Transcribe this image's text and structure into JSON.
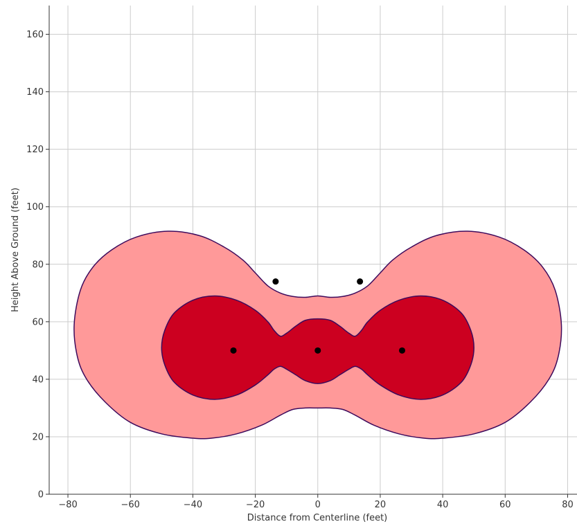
{
  "chart_data": {
    "type": "area",
    "xlabel": "Distance from Centerline (feet)",
    "ylabel": "Height Above Ground (feet)",
    "xlim": [
      -86,
      83
    ],
    "ylim": [
      0,
      170
    ],
    "x_ticks": [
      -80,
      -60,
      -40,
      -20,
      0,
      20,
      40,
      60,
      80
    ],
    "y_ticks": [
      0,
      20,
      40,
      60,
      80,
      100,
      120,
      140,
      160
    ],
    "grid": true,
    "colors": {
      "outer_region": "#ff9999",
      "inner_region": "#cc0020",
      "boundary": "#3d0a5c",
      "points": "#000000"
    },
    "regions": [
      {
        "level": "outer",
        "outline": [
          [
            -78,
            59
          ],
          [
            -76,
            71
          ],
          [
            -72,
            79
          ],
          [
            -66,
            85
          ],
          [
            -58,
            89.5
          ],
          [
            -48,
            91.5
          ],
          [
            -38,
            90
          ],
          [
            -30,
            86
          ],
          [
            -24,
            81.5
          ],
          [
            -20,
            77
          ],
          [
            -16,
            72.5
          ],
          [
            -12,
            70
          ],
          [
            -8,
            68.8
          ],
          [
            -4,
            68.5
          ],
          [
            0,
            69
          ],
          [
            4,
            68.5
          ],
          [
            8,
            68.8
          ],
          [
            12,
            70
          ],
          [
            16,
            72.5
          ],
          [
            20,
            77
          ],
          [
            24,
            81.5
          ],
          [
            30,
            86
          ],
          [
            38,
            90
          ],
          [
            48,
            91.5
          ],
          [
            58,
            89.5
          ],
          [
            66,
            85
          ],
          [
            72,
            79
          ],
          [
            76,
            71
          ],
          [
            78,
            59
          ],
          [
            77,
            48
          ],
          [
            74,
            40
          ],
          [
            68,
            32
          ],
          [
            60,
            25
          ],
          [
            50,
            21
          ],
          [
            40,
            19.5
          ],
          [
            34,
            19.5
          ],
          [
            26,
            21
          ],
          [
            18,
            24
          ],
          [
            12,
            27.5
          ],
          [
            8,
            29.5
          ],
          [
            4,
            30
          ],
          [
            0,
            30
          ],
          [
            -4,
            30
          ],
          [
            -8,
            29.5
          ],
          [
            -12,
            27.5
          ],
          [
            -18,
            24
          ],
          [
            -26,
            21
          ],
          [
            -34,
            19.5
          ],
          [
            -40,
            19.5
          ],
          [
            -50,
            21
          ],
          [
            -60,
            25
          ],
          [
            -68,
            32
          ],
          [
            -74,
            40
          ],
          [
            -77,
            48
          ]
        ]
      },
      {
        "level": "inner",
        "outline": [
          [
            -50,
            51
          ],
          [
            -49,
            57
          ],
          [
            -46,
            63
          ],
          [
            -40,
            67.5
          ],
          [
            -33,
            69
          ],
          [
            -26,
            67.5
          ],
          [
            -20,
            64
          ],
          [
            -16,
            60
          ],
          [
            -14,
            57
          ],
          [
            -12,
            55
          ],
          [
            -10,
            56
          ],
          [
            -7,
            58.5
          ],
          [
            -4,
            60.5
          ],
          [
            0,
            61
          ],
          [
            4,
            60.5
          ],
          [
            7,
            58.5
          ],
          [
            10,
            56
          ],
          [
            12,
            55
          ],
          [
            14,
            57
          ],
          [
            16,
            60
          ],
          [
            20,
            64
          ],
          [
            26,
            67.5
          ],
          [
            33,
            69
          ],
          [
            40,
            67.5
          ],
          [
            46,
            63
          ],
          [
            49,
            57
          ],
          [
            50,
            51
          ],
          [
            49,
            45
          ],
          [
            46,
            39
          ],
          [
            40,
            34.5
          ],
          [
            33,
            33
          ],
          [
            26,
            34.5
          ],
          [
            20,
            38
          ],
          [
            16,
            41.5
          ],
          [
            14,
            43.5
          ],
          [
            12,
            44.5
          ],
          [
            10,
            43.5
          ],
          [
            7,
            41.5
          ],
          [
            4,
            39.5
          ],
          [
            0,
            38.5
          ],
          [
            -4,
            39.5
          ],
          [
            -7,
            41.5
          ],
          [
            -10,
            43.5
          ],
          [
            -12,
            44.5
          ],
          [
            -14,
            43.5
          ],
          [
            -16,
            41.5
          ],
          [
            -20,
            38
          ],
          [
            -26,
            34.5
          ],
          [
            -33,
            33
          ],
          [
            -40,
            34.5
          ],
          [
            -46,
            39
          ],
          [
            -49,
            45
          ]
        ]
      }
    ],
    "points": [
      {
        "x": -13.5,
        "y": 74
      },
      {
        "x": 13.5,
        "y": 74
      },
      {
        "x": -27,
        "y": 50
      },
      {
        "x": 0,
        "y": 50
      },
      {
        "x": 27,
        "y": 50
      }
    ]
  }
}
